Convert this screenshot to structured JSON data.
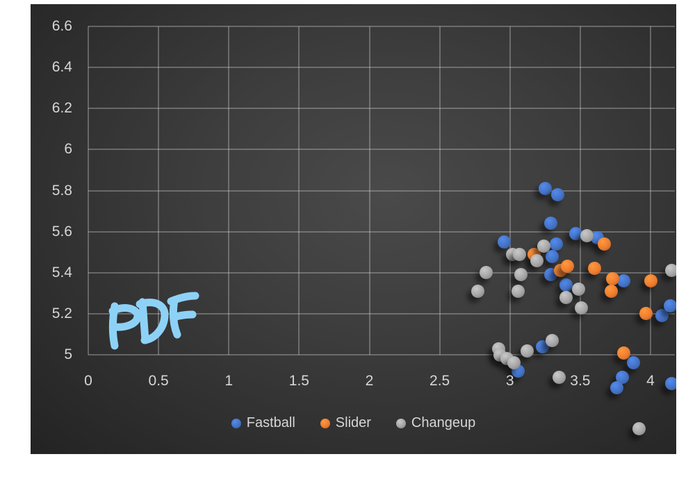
{
  "chart_data": {
    "type": "scatter",
    "title": "",
    "xlabel": "",
    "ylabel": "",
    "grid": true,
    "legend_position": "bottom",
    "x_axis": {
      "min": 0,
      "max": 4,
      "step": 0.5,
      "ticks": [
        "0",
        "0.5",
        "1",
        "1.5",
        "2",
        "2.5",
        "3",
        "3.5",
        "4"
      ]
    },
    "y_axis": {
      "min": 5,
      "max": 6.6,
      "step": 0.2,
      "ticks": [
        "5",
        "5.2",
        "5.4",
        "5.6",
        "5.8",
        "6",
        "6.2",
        "6.4",
        "6.6"
      ]
    },
    "series": [
      {
        "name": "Fastball",
        "color": "#4472C4",
        "points": [
          [
            3.25,
            5.81
          ],
          [
            3.34,
            5.78
          ],
          [
            3.29,
            5.64
          ],
          [
            3.47,
            5.59
          ],
          [
            3.62,
            5.57
          ],
          [
            2.96,
            5.55
          ],
          [
            3.33,
            5.54
          ],
          [
            3.3,
            5.48
          ],
          [
            3.29,
            5.39
          ],
          [
            3.4,
            5.34
          ],
          [
            3.81,
            5.36
          ],
          [
            4.08,
            5.19
          ],
          [
            4.14,
            5.24
          ],
          [
            3.23,
            5.04
          ],
          [
            3.06,
            4.92
          ],
          [
            3.88,
            4.96
          ],
          [
            3.8,
            4.89
          ],
          [
            3.76,
            4.84
          ],
          [
            4.15,
            4.86
          ]
        ]
      },
      {
        "name": "Slider",
        "color": "#ED7D31",
        "points": [
          [
            3.17,
            5.49
          ],
          [
            3.36,
            5.41
          ],
          [
            3.41,
            5.43
          ],
          [
            3.6,
            5.42
          ],
          [
            3.67,
            5.54
          ],
          [
            3.73,
            5.37
          ],
          [
            3.72,
            5.31
          ],
          [
            4.0,
            5.36
          ],
          [
            3.97,
            5.2
          ],
          [
            3.81,
            5.01
          ]
        ]
      },
      {
        "name": "Changeup",
        "color": "#A5A5A5",
        "points": [
          [
            3.55,
            5.58
          ],
          [
            3.24,
            5.53
          ],
          [
            3.02,
            5.49
          ],
          [
            3.07,
            5.49
          ],
          [
            3.19,
            5.46
          ],
          [
            2.83,
            5.4
          ],
          [
            3.08,
            5.39
          ],
          [
            2.77,
            5.31
          ],
          [
            3.06,
            5.31
          ],
          [
            3.49,
            5.32
          ],
          [
            3.4,
            5.28
          ],
          [
            3.51,
            5.23
          ],
          [
            4.15,
            5.41
          ],
          [
            3.3,
            5.07
          ],
          [
            3.12,
            5.02
          ],
          [
            2.92,
            5.03
          ],
          [
            2.93,
            5.0
          ],
          [
            2.98,
            4.98
          ],
          [
            3.03,
            4.96
          ],
          [
            3.35,
            4.89
          ],
          [
            3.92,
            4.64
          ]
        ]
      }
    ],
    "annotation": {
      "text": "PDF",
      "color": "#8DD2F6"
    },
    "text_color": "#d6d6d6"
  }
}
